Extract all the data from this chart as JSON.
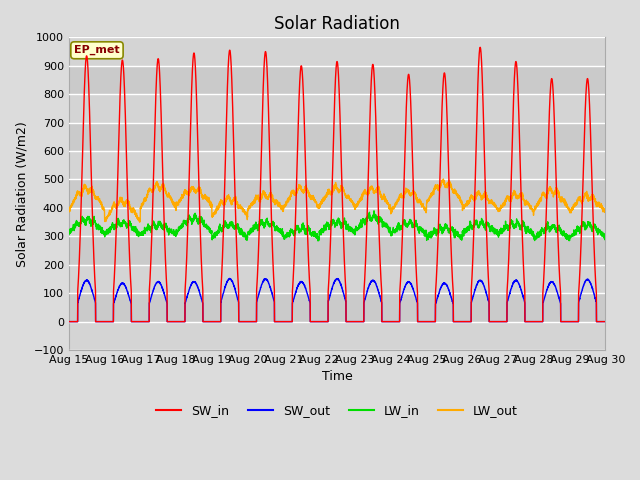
{
  "title": "Solar Radiation",
  "ylabel": "Solar Radiation (W/m2)",
  "xlabel": "Time",
  "ylim": [
    -100,
    1000
  ],
  "xlim": [
    0,
    15
  ],
  "x_tick_labels": [
    "Aug 15",
    "Aug 16",
    "Aug 17",
    "Aug 18",
    "Aug 19",
    "Aug 20",
    "Aug 21",
    "Aug 22",
    "Aug 23",
    "Aug 24",
    "Aug 25",
    "Aug 26",
    "Aug 27",
    "Aug 28",
    "Aug 29",
    "Aug 30"
  ],
  "background_color": "#dcdcdc",
  "plot_bg_color": "#dcdcdc",
  "grid_color": "#ffffff",
  "band_colors": [
    "#d0d0d0",
    "#c8c8c8"
  ],
  "label_box_text": "EP_met",
  "label_box_color": "#ffffcc",
  "label_box_edge": "#888800",
  "sw_in_color": "#ff0000",
  "sw_out_color": "#0000ff",
  "lw_in_color": "#00dd00",
  "lw_out_color": "#ffaa00",
  "n_days": 15,
  "points_per_day": 288,
  "sw_in_peaks": [
    935,
    920,
    925,
    945,
    955,
    950,
    900,
    915,
    905,
    870,
    875,
    965,
    915,
    855,
    855
  ],
  "sw_out_peaks": [
    145,
    135,
    140,
    140,
    150,
    150,
    140,
    150,
    145,
    140,
    135,
    145,
    145,
    140,
    148
  ],
  "lw_in_base": 305,
  "lw_out_base": 395,
  "title_fontsize": 12,
  "axis_fontsize": 9,
  "tick_fontsize": 8,
  "legend_fontsize": 9
}
